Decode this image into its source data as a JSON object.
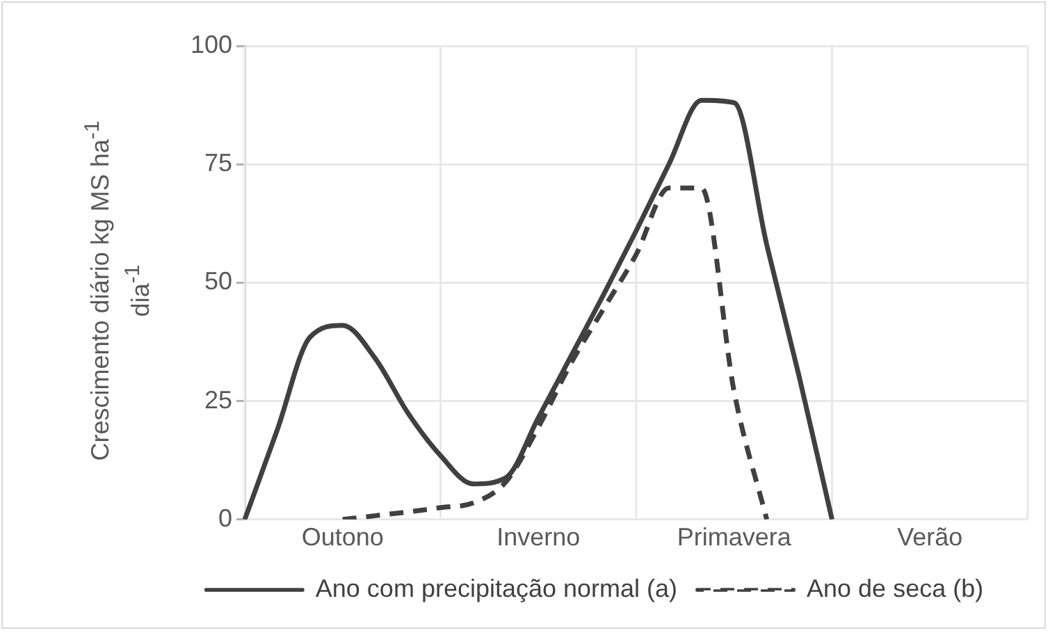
{
  "chart_data": {
    "type": "line",
    "ylabel": "Crescimento diário kg MS ha$^{-1}$ dia$^{-1}$",
    "categories": [
      null,
      null,
      null,
      "Outono",
      null,
      null,
      null,
      null,
      null,
      "Inverno",
      null,
      null,
      null,
      null,
      null,
      "Primavera",
      null,
      null,
      null,
      null,
      null,
      "Verão",
      null,
      null,
      null
    ],
    "ylim": [
      0,
      100
    ],
    "yticks": [
      0,
      25,
      50,
      75,
      100
    ],
    "grid": true,
    "legend": "bottom",
    "marker": "none",
    "series": [
      {
        "name": "Ano com precipitação normal (a)",
        "color": "#404040",
        "line_style": "solid",
        "values": [
          0,
          19,
          38.5,
          41,
          34,
          22.5,
          13.5,
          7.5,
          8.8,
          21.5,
          34.5,
          47.5,
          61,
          75,
          88.5,
          88,
          58,
          30,
          0,
          null,
          null,
          null,
          null,
          null,
          null
        ]
      },
      {
        "name": "Ano de seca (b)",
        "color": "#404040",
        "line_style": "dashed",
        "values": [
          null,
          null,
          null,
          0,
          0.8,
          1.6,
          2.5,
          3.5,
          7.9,
          19.5,
          33,
          44.5,
          56,
          70,
          70,
          27,
          0,
          null,
          null,
          null,
          null,
          null,
          null,
          null,
          null
        ]
      }
    ]
  }
}
